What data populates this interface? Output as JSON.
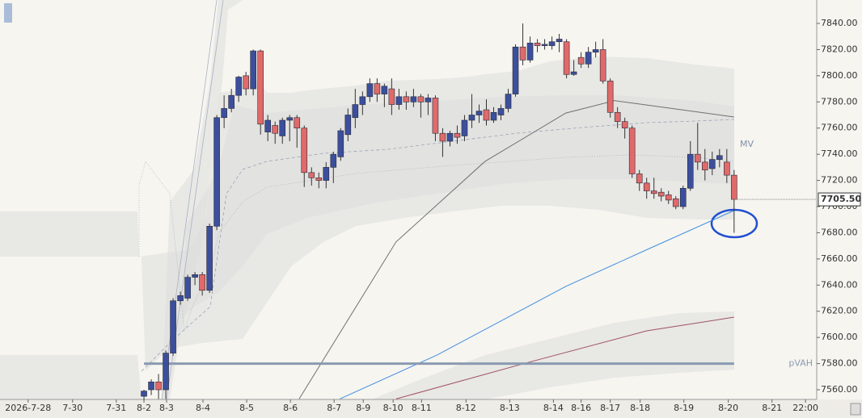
{
  "chart_data": {
    "type": "candlestick",
    "x": [
      0,
      1,
      2,
      3,
      4,
      5,
      6,
      7,
      8,
      9,
      10,
      11,
      12,
      13,
      14,
      15,
      16,
      17,
      18,
      19,
      20,
      21,
      22,
      23,
      24,
      25,
      26,
      27,
      28,
      29,
      30,
      31,
      32,
      33,
      34,
      35,
      36,
      37,
      38,
      39,
      40,
      41,
      42,
      43,
      44,
      45,
      46,
      47,
      48,
      49,
      50,
      51,
      52,
      53,
      54,
      55,
      56,
      57,
      58,
      59,
      60,
      61,
      62,
      63,
      64,
      65,
      66,
      67,
      68,
      69,
      70,
      71,
      72,
      73,
      74,
      75,
      76,
      77,
      78,
      79,
      80,
      81
    ],
    "open": [
      7555,
      7560,
      7566,
      7560,
      7588,
      7628,
      7630,
      7646,
      7648,
      7636,
      7685,
      7768,
      7775,
      7785,
      7800,
      7790,
      7819,
      7757,
      7762,
      7754,
      7766,
      7768,
      7760,
      7726,
      7722,
      7720,
      7730,
      7738,
      7755,
      7768,
      7778,
      7784,
      7794,
      7786,
      7790,
      7778,
      7784,
      7780,
      7784,
      7780,
      7783,
      7756,
      7750,
      7756,
      7754,
      7766,
      7770,
      7774,
      7766,
      7770,
      7775,
      7786,
      7822,
      7812,
      7825,
      7823,
      7823,
      7826,
      7826,
      7801,
      7814,
      7809,
      7818,
      7820,
      7796,
      7772,
      7765,
      7760,
      7725,
      7718,
      7712,
      7711,
      7709,
      7706,
      7700,
      7714,
      7740,
      7734,
      7729,
      7736,
      7734,
      7724
    ],
    "high": [
      7560,
      7568,
      7572,
      7590,
      7630,
      7635,
      7648,
      7650,
      7650,
      7687,
      7770,
      7785,
      7790,
      7800,
      7803,
      7820,
      7820,
      7770,
      7765,
      7768,
      7770,
      7770,
      7762,
      7730,
      7726,
      7734,
      7742,
      7760,
      7775,
      7790,
      7788,
      7798,
      7798,
      7794,
      7798,
      7790,
      7788,
      7790,
      7786,
      7786,
      7785,
      7760,
      7758,
      7762,
      7770,
      7786,
      7778,
      7782,
      7776,
      7778,
      7790,
      7824,
      7840,
      7830,
      7828,
      7828,
      7830,
      7832,
      7828,
      7812,
      7818,
      7822,
      7826,
      7828,
      7798,
      7776,
      7768,
      7762,
      7728,
      7722,
      7722,
      7714,
      7712,
      7708,
      7716,
      7750,
      7764,
      7744,
      7742,
      7744,
      7744,
      7728
    ],
    "low": [
      7552,
      7556,
      7553,
      7553,
      7586,
      7625,
      7628,
      7640,
      7632,
      7634,
      7682,
      7760,
      7772,
      7780,
      7785,
      7785,
      7755,
      7750,
      7748,
      7748,
      7750,
      7745,
      7715,
      7716,
      7714,
      7714,
      7718,
      7735,
      7750,
      7760,
      7770,
      7780,
      7780,
      7776,
      7770,
      7774,
      7774,
      7776,
      7768,
      7770,
      7750,
      7738,
      7746,
      7748,
      7750,
      7760,
      7764,
      7762,
      7764,
      7766,
      7772,
      7784,
      7808,
      7810,
      7818,
      7820,
      7820,
      7818,
      7798,
      7800,
      7806,
      7806,
      7814,
      7794,
      7768,
      7760,
      7752,
      7722,
      7712,
      7706,
      7706,
      7704,
      7702,
      7698,
      7698,
      7712,
      7728,
      7720,
      7724,
      7730,
      7718,
      7680
    ],
    "close": [
      7559,
      7566,
      7560,
      7588,
      7628,
      7632,
      7646,
      7648,
      7636,
      7685,
      7768,
      7775,
      7785,
      7799,
      7790,
      7819,
      7763,
      7766,
      7756,
      7766,
      7768,
      7760,
      7726,
      7722,
      7720,
      7730,
      7740,
      7758,
      7770,
      7778,
      7784,
      7794,
      7786,
      7792,
      7778,
      7784,
      7780,
      7784,
      7780,
      7783,
      7756,
      7750,
      7756,
      7753,
      7766,
      7770,
      7773,
      7766,
      7772,
      7775,
      7786,
      7822,
      7812,
      7825,
      7823,
      7824,
      7826,
      7828,
      7801,
      7803,
      7809,
      7818,
      7820,
      7796,
      7772,
      7765,
      7760,
      7725,
      7718,
      7712,
      7710,
      7708,
      7705,
      7700,
      7714,
      7740,
      7734,
      7728,
      7736,
      7739,
      7724,
      7705.5
    ],
    "up_color": "#3b4f9c",
    "down_color": "#e06a6a",
    "lines": [
      {
        "color": "#3f8fe0",
        "x": [
          26.9,
          40.2,
          57.9,
          69,
          81
        ],
        "values": [
          7553,
          7586.5,
          7639,
          7667,
          7697
        ]
      },
      {
        "color": "#707070",
        "x": [
          21.3,
          34.6,
          46.8,
          57.9,
          64.6,
          81
        ],
        "values": [
          7553,
          7673,
          7734.5,
          7771.5,
          7781,
          7768.5
        ]
      },
      {
        "color": "#a05060",
        "x": [
          34.6,
          52.4,
          69,
          81
        ],
        "values": [
          7553,
          7580.4,
          7605,
          7615.5
        ]
      }
    ],
    "levels": [
      {
        "name": "pVAH",
        "value": 7580,
        "color": "#8a9ab2"
      }
    ],
    "annotation": "MV",
    "last_price": {
      "value": 7705.5,
      "label": "7705.50"
    },
    "xlim": [
      -19.76,
      92.34
    ],
    "xticks": [
      {
        "value": -15.9,
        "label": "2026-7-28"
      },
      {
        "value": -9.8,
        "label": "7-30"
      },
      {
        "value": -3.8,
        "label": "7-31"
      },
      {
        "value": 0,
        "label": "8-2"
      },
      {
        "value": 3.1,
        "label": "8-3"
      },
      {
        "value": 8.1,
        "label": "8-4"
      },
      {
        "value": 14.1,
        "label": "8-5"
      },
      {
        "value": 20.1,
        "label": "8-6"
      },
      {
        "value": 26.1,
        "label": "8-7"
      },
      {
        "value": 30.1,
        "label": "8-9"
      },
      {
        "value": 34.2,
        "label": "8-10"
      },
      {
        "value": 38.1,
        "label": "8-11"
      },
      {
        "value": 44.2,
        "label": "8-12"
      },
      {
        "value": 50.2,
        "label": "8-13"
      },
      {
        "value": 56.2,
        "label": "8-14"
      },
      {
        "value": 60,
        "label": "8-16"
      },
      {
        "value": 64,
        "label": "8-17"
      },
      {
        "value": 68.1,
        "label": "8-18"
      },
      {
        "value": 74.1,
        "label": "8-19"
      },
      {
        "value": 80.2,
        "label": "8-20"
      },
      {
        "value": 86.2,
        "label": "8-21"
      },
      {
        "value": 90.8,
        "label": "22:00"
      }
    ],
    "ylim": [
      7552.6,
      7857.9
    ],
    "yticks": [
      {
        "value": 7560,
        "label": "7560.00"
      },
      {
        "value": 7580,
        "label": "7580.00"
      },
      {
        "value": 7600,
        "label": "7600.00"
      },
      {
        "value": 7620,
        "label": "7620.00"
      },
      {
        "value": 7640,
        "label": "7640.00"
      },
      {
        "value": 7660,
        "label": "7660.00"
      },
      {
        "value": 7680,
        "label": "7680.00"
      },
      {
        "value": 7700,
        "label": "7700.00"
      },
      {
        "value": 7720,
        "label": "7720.00"
      },
      {
        "value": 7740,
        "label": "7740.00"
      },
      {
        "value": 7760,
        "label": "7760.00"
      },
      {
        "value": 7780,
        "label": "7780.00"
      },
      {
        "value": 7800,
        "label": "7800.00"
      },
      {
        "value": 7820,
        "label": "7820.00"
      },
      {
        "value": 7840,
        "label": "7840.00"
      }
    ]
  }
}
